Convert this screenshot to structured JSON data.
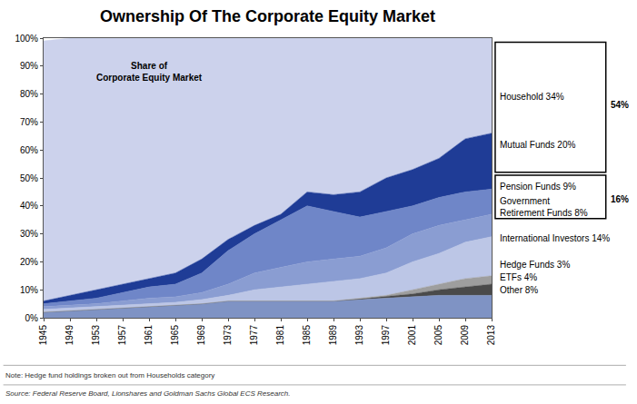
{
  "chart_data": {
    "type": "area",
    "title": "Ownership Of The Corporate Equity Market",
    "stacked": true,
    "grid": false,
    "x": [
      1945,
      1949,
      1953,
      1957,
      1961,
      1965,
      1969,
      1973,
      1977,
      1981,
      1985,
      1989,
      1993,
      1997,
      2001,
      2005,
      2009,
      2013
    ],
    "xlim": [
      1945,
      2013
    ],
    "xticks": [
      1945,
      1949,
      1953,
      1957,
      1961,
      1965,
      1969,
      1973,
      1977,
      1981,
      1985,
      1989,
      1993,
      1997,
      2001,
      2005,
      2009,
      2013
    ],
    "ylim": [
      0,
      100
    ],
    "yticks": [
      {
        "value": 0,
        "label": "0%"
      },
      {
        "value": 10,
        "label": "10%"
      },
      {
        "value": 20,
        "label": "20%"
      },
      {
        "value": 30,
        "label": "30%"
      },
      {
        "value": 40,
        "label": "40%"
      },
      {
        "value": 50,
        "label": "50%"
      },
      {
        "value": 60,
        "label": "60%"
      },
      {
        "value": 70,
        "label": "70%"
      },
      {
        "value": 80,
        "label": "80%"
      },
      {
        "value": 90,
        "label": "90%"
      },
      {
        "value": 100,
        "label": "100%"
      }
    ],
    "series": [
      {
        "name": "Other",
        "color": "#7f93c4",
        "values": [
          2,
          2.5,
          3,
          3.5,
          4,
          4.5,
          5,
          6,
          6,
          6,
          6,
          6,
          6.5,
          7,
          7.5,
          8,
          8,
          8
        ]
      },
      {
        "name": "ETFs",
        "color": "#4a4a4a",
        "values": [
          0,
          0,
          0,
          0,
          0,
          0,
          0,
          0,
          0,
          0,
          0,
          0,
          0.2,
          0.5,
          1,
          2,
          3,
          4
        ]
      },
      {
        "name": "Hedge Funds",
        "color": "#9e9e9e",
        "values": [
          0,
          0,
          0,
          0,
          0,
          0,
          0,
          0,
          0,
          0,
          0,
          0,
          0.3,
          0.5,
          1.5,
          2,
          3,
          3
        ]
      },
      {
        "name": "International Investors",
        "color": "#bcc6e6",
        "values": [
          1,
          1,
          1,
          1,
          1,
          1,
          1.5,
          2,
          4,
          5,
          6,
          7,
          7,
          8,
          10,
          11,
          13,
          14
        ]
      },
      {
        "name": "Government Retirement Funds",
        "color": "#8a9dd2",
        "values": [
          1,
          1,
          1,
          1.5,
          2,
          2,
          2.5,
          4,
          6,
          7,
          8,
          8,
          8,
          9,
          10,
          10,
          8,
          8
        ]
      },
      {
        "name": "Pension Funds",
        "color": "#6f86c8",
        "values": [
          1,
          1.5,
          2,
          3,
          4,
          4.5,
          7,
          12,
          14,
          17,
          20,
          17,
          14,
          13,
          10,
          10,
          10,
          9
        ]
      },
      {
        "name": "Mutual Funds",
        "color": "#1f3c96",
        "values": [
          1,
          2,
          3,
          3,
          3,
          4,
          5,
          4,
          3,
          2,
          5,
          6,
          9,
          12,
          13,
          14,
          19,
          20
        ]
      },
      {
        "name": "Household",
        "color": "#ccd2ec",
        "values": [
          93,
          92,
          90,
          88,
          86,
          84,
          79,
          72,
          67,
          63,
          55,
          56,
          55,
          50,
          47,
          43,
          36,
          34
        ]
      }
    ],
    "annotations": [
      "Share of\nCorporate Equity Market",
      "Household 34%",
      "Mutual Funds 20%",
      "54%",
      "Pension Funds 9%",
      "Government\nRetirement Funds 8%",
      "16%",
      "International Investors 14%",
      "Hedge Funds 3%",
      "ETFs 4%",
      "Other 8%",
      "Note: Hedge fund holdings broken out from Households category",
      "Source: Federal Reserve Board, Lionshares and Goldman Sachs Global ECS Research."
    ]
  }
}
